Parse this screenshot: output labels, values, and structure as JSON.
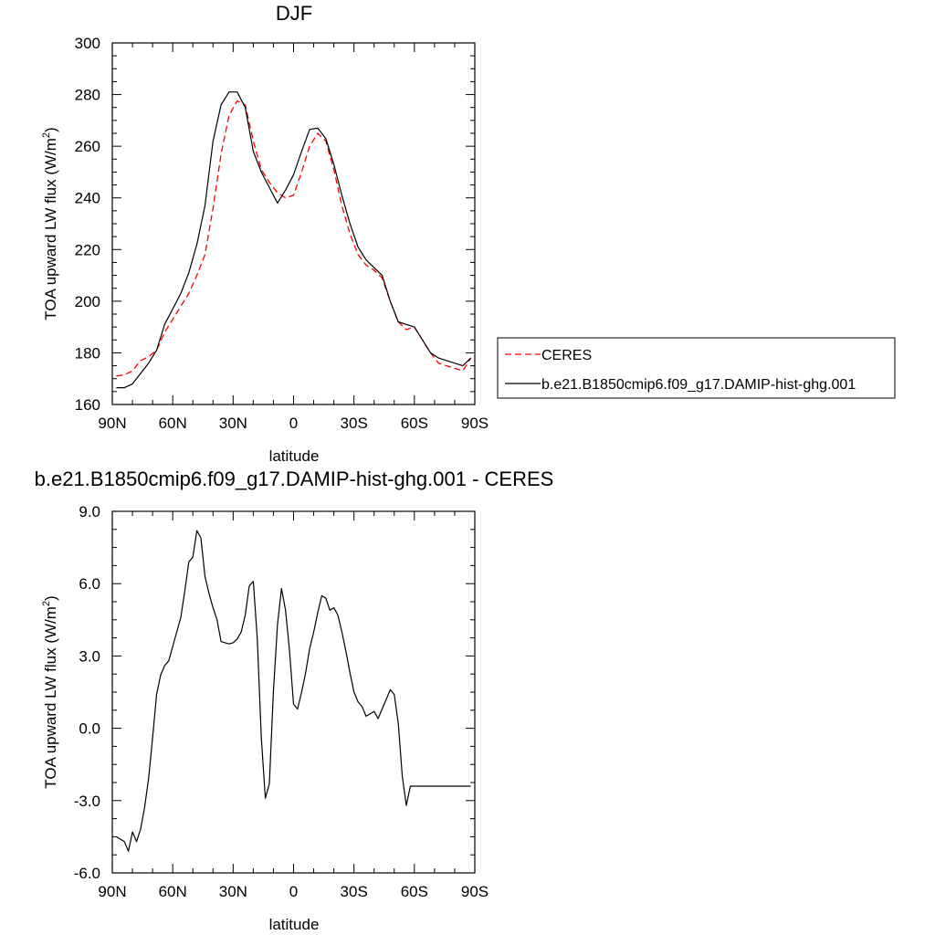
{
  "chart_data": [
    {
      "type": "line",
      "title": "DJF",
      "xlabel": "latitude",
      "ylabel": "TOA upward LW flux (W/m²)",
      "ylabel_main": "TOA upward LW flux (W/m",
      "ylabel_sup": "2",
      "ylabel_close": ")",
      "xlim": [
        90,
        -90
      ],
      "ylim": [
        160,
        300
      ],
      "x_ticks": [
        90,
        60,
        30,
        0,
        -30,
        -60,
        -90
      ],
      "x_tick_labels": [
        "90N",
        "60N",
        "30N",
        "0",
        "30S",
        "60S",
        "90S"
      ],
      "y_ticks": [
        160,
        180,
        200,
        220,
        240,
        260,
        280,
        300
      ],
      "y_tick_labels": [
        "160",
        "180",
        "200",
        "220",
        "240",
        "260",
        "280",
        "300"
      ],
      "legend": "right",
      "series": [
        {
          "name": "CERES",
          "color": "#ff0000",
          "dash": true,
          "x": [
            88,
            84,
            80,
            76,
            72,
            68,
            64,
            60,
            56,
            52,
            48,
            44,
            40,
            36,
            32,
            28,
            24,
            20,
            16,
            12,
            8,
            4,
            0,
            -4,
            -8,
            -12,
            -16,
            -20,
            -24,
            -28,
            -32,
            -36,
            -40,
            -44,
            -48,
            -52,
            -56,
            -60,
            -64,
            -68,
            -72,
            -76,
            -80,
            -84,
            -88
          ],
          "y": [
            171,
            171.5,
            173,
            177,
            178.5,
            181,
            188,
            193,
            198,
            203,
            210,
            218,
            236,
            257,
            272,
            277.5,
            276,
            262,
            251,
            246,
            242,
            240,
            241,
            250,
            260,
            265,
            262,
            251,
            237,
            226,
            218,
            214,
            212,
            209,
            200,
            192,
            189,
            190,
            185,
            180,
            176,
            175,
            174,
            173,
            178
          ]
        },
        {
          "name": "b.e21.B1850cmip6.f09_g17.DAMIP-hist-ghg.001",
          "color": "#000000",
          "dash": false,
          "x": [
            88,
            84,
            80,
            76,
            72,
            68,
            64,
            60,
            56,
            52,
            48,
            44,
            40,
            36,
            32,
            28,
            24,
            20,
            16,
            12,
            8,
            4,
            0,
            -4,
            -8,
            -12,
            -16,
            -20,
            -24,
            -28,
            -32,
            -36,
            -40,
            -44,
            -48,
            -52,
            -56,
            -60,
            -64,
            -68,
            -72,
            -76,
            -80,
            -84,
            -88
          ],
          "y": [
            166.5,
            166.5,
            168,
            172,
            176,
            181,
            191,
            197,
            203,
            211,
            222,
            237,
            262,
            276,
            281,
            281,
            275,
            258,
            250,
            244,
            238,
            243,
            249,
            258,
            266.5,
            267,
            263,
            253,
            241,
            230,
            221,
            216,
            213,
            210,
            200,
            192,
            191,
            190,
            185,
            180,
            178,
            177,
            176,
            175,
            178
          ]
        }
      ]
    },
    {
      "type": "line",
      "title": "b.e21.B1850cmip6.f09_g17.DAMIP-hist-ghg.001 - CERES",
      "xlabel": "latitude",
      "ylabel": "TOA upward LW flux (W/m²)",
      "ylabel_main": "TOA upward LW flux (W/m",
      "ylabel_sup": "2",
      "ylabel_close": ")",
      "xlim": [
        90,
        -90
      ],
      "ylim": [
        -6,
        9
      ],
      "x_ticks": [
        90,
        60,
        30,
        0,
        -30,
        -60,
        -90
      ],
      "x_tick_labels": [
        "90N",
        "60N",
        "30N",
        "0",
        "30S",
        "60S",
        "90S"
      ],
      "y_ticks": [
        -6,
        -3,
        0,
        3,
        6,
        9
      ],
      "y_tick_labels": [
        "-6.0",
        "-3.0",
        "0.0",
        "3.0",
        "6.0",
        "9.0"
      ],
      "series": [
        {
          "color": "#000000",
          "dash": false,
          "x": [
            88,
            86,
            84,
            82,
            80,
            78,
            76,
            74,
            72,
            70,
            68,
            66,
            64,
            62,
            60,
            58,
            56,
            54,
            52,
            50,
            48,
            46,
            44,
            42,
            40,
            38,
            36,
            34,
            32,
            30,
            28,
            26,
            24,
            22,
            20,
            18,
            16,
            14,
            12,
            10,
            8,
            6,
            4,
            2,
            0,
            -2,
            -4,
            -6,
            -8,
            -10,
            -12,
            -14,
            -16,
            -18,
            -20,
            -22,
            -24,
            -26,
            -28,
            -30,
            -32,
            -34,
            -36,
            -38,
            -40,
            -42,
            -44,
            -46,
            -48,
            -50,
            -52,
            -54,
            -56,
            -58,
            -60,
            -62,
            -64,
            -66,
            -68,
            -70,
            -72,
            -74,
            -76,
            -78,
            -80,
            -82,
            -84,
            -86,
            -88
          ],
          "y": [
            -4.5,
            -4.6,
            -4.7,
            -5.1,
            -4.3,
            -4.7,
            -4.2,
            -3.3,
            -2.1,
            -0.4,
            1.4,
            2.2,
            2.6,
            2.8,
            3.4,
            4.0,
            4.6,
            5.7,
            6.9,
            7.1,
            8.2,
            7.9,
            6.3,
            5.6,
            5.0,
            4.5,
            3.6,
            3.55,
            3.5,
            3.55,
            3.7,
            4.0,
            4.7,
            5.9,
            6.1,
            3.7,
            -0.4,
            -2.9,
            -2.3,
            1.5,
            4.3,
            5.8,
            4.9,
            3.2,
            1.0,
            0.8,
            1.5,
            2.3,
            3.3,
            4.0,
            4.8,
            5.5,
            5.4,
            4.9,
            5.0,
            4.7,
            4.0,
            3.2,
            2.3,
            1.5,
            1.1,
            0.9,
            0.5,
            0.6,
            0.7,
            0.4,
            0.8,
            1.2,
            1.6,
            1.4,
            0.2,
            -2.0,
            -3.2,
            -2.4,
            -2.4,
            -2.4,
            -2.4,
            -2.4,
            -2.4,
            -2.4,
            -2.4,
            -2.4,
            -2.4,
            -2.4,
            -2.4,
            -2.4,
            -2.4,
            -2.4,
            -2.4
          ]
        }
      ]
    }
  ]
}
